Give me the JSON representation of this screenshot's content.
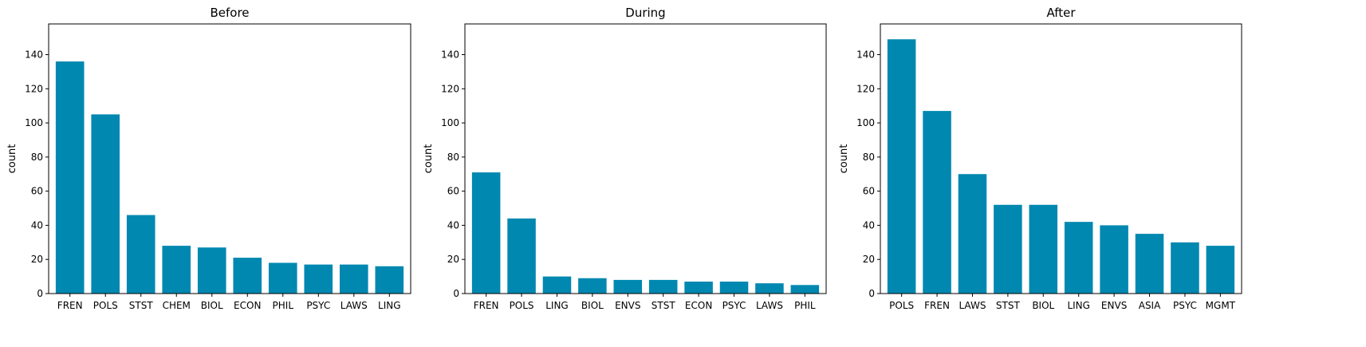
{
  "chart_data": [
    {
      "type": "bar",
      "title": "Before",
      "xlabel": "",
      "ylabel": "count",
      "ylim": [
        0,
        158
      ],
      "yticks": [
        0,
        20,
        40,
        60,
        80,
        100,
        120,
        140
      ],
      "grid": false,
      "bar_color": "#0088b0",
      "categories": [
        "FREN",
        "POLS",
        "STST",
        "CHEM",
        "BIOL",
        "ECON",
        "PHIL",
        "PSYC",
        "LAWS",
        "LING"
      ],
      "values": [
        136,
        105,
        46,
        28,
        27,
        21,
        18,
        17,
        17,
        16
      ]
    },
    {
      "type": "bar",
      "title": "During",
      "xlabel": "",
      "ylabel": "count",
      "ylim": [
        0,
        158
      ],
      "yticks": [
        0,
        20,
        40,
        60,
        80,
        100,
        120,
        140
      ],
      "grid": false,
      "bar_color": "#0088b0",
      "categories": [
        "FREN",
        "POLS",
        "LING",
        "BIOL",
        "ENVS",
        "STST",
        "ECON",
        "PSYC",
        "LAWS",
        "PHIL"
      ],
      "values": [
        71,
        44,
        10,
        9,
        8,
        8,
        7,
        7,
        6,
        5
      ]
    },
    {
      "type": "bar",
      "title": "After",
      "xlabel": "",
      "ylabel": "count",
      "ylim": [
        0,
        158
      ],
      "yticks": [
        0,
        20,
        40,
        60,
        80,
        100,
        120,
        140
      ],
      "grid": false,
      "bar_color": "#0088b0",
      "categories": [
        "POLS",
        "FREN",
        "LAWS",
        "STST",
        "BIOL",
        "LING",
        "ENVS",
        "ASIA",
        "PSYC",
        "MGMT"
      ],
      "values": [
        149,
        107,
        70,
        52,
        52,
        42,
        40,
        35,
        30,
        28
      ]
    }
  ]
}
